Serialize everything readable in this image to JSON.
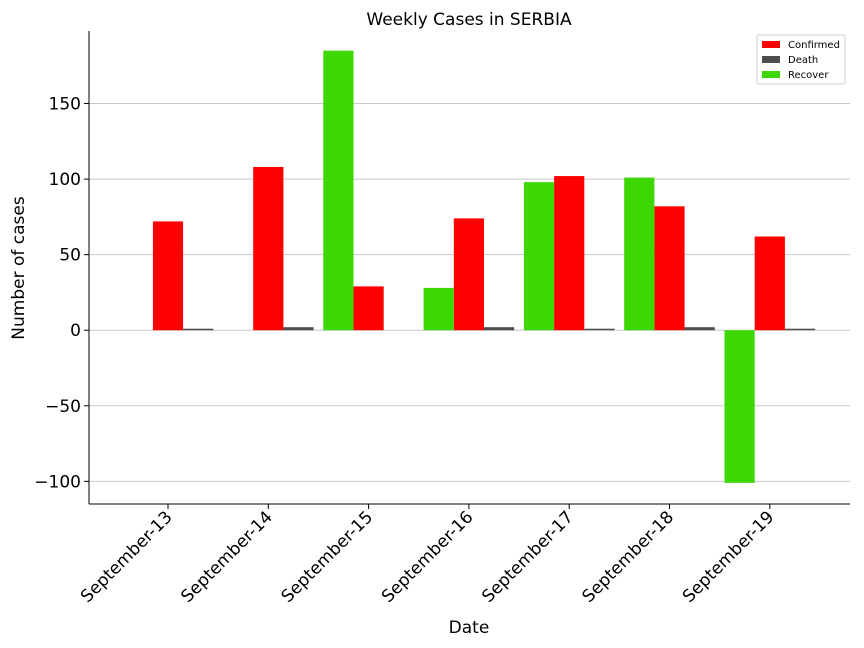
{
  "chart_data": {
    "type": "bar",
    "title": "Weekly Cases in SERBIA",
    "xlabel": "Date",
    "ylabel": "Number of cases",
    "categories": [
      "September-13",
      "September-14",
      "September-15",
      "September-16",
      "September-17",
      "September-18",
      "September-19"
    ],
    "series": [
      {
        "name": "Confirmed",
        "color": "#ff0000",
        "values": [
          72,
          108,
          29,
          74,
          102,
          82,
          62
        ]
      },
      {
        "name": "Death",
        "color": "#4d4d4d",
        "values": [
          1,
          2,
          0,
          2,
          1,
          2,
          1
        ]
      },
      {
        "name": "Recover",
        "color": "#3dd804",
        "values": [
          0,
          0,
          185,
          28,
          98,
          101,
          -101
        ]
      }
    ],
    "ylim": [
      -115,
      198
    ],
    "yticks": [
      -100,
      -50,
      0,
      50,
      100,
      150
    ],
    "ytick_labels": [
      "−100",
      "−50",
      "0",
      "50",
      "100",
      "150"
    ],
    "grid": "horizontal",
    "legend_position": "top-right"
  }
}
